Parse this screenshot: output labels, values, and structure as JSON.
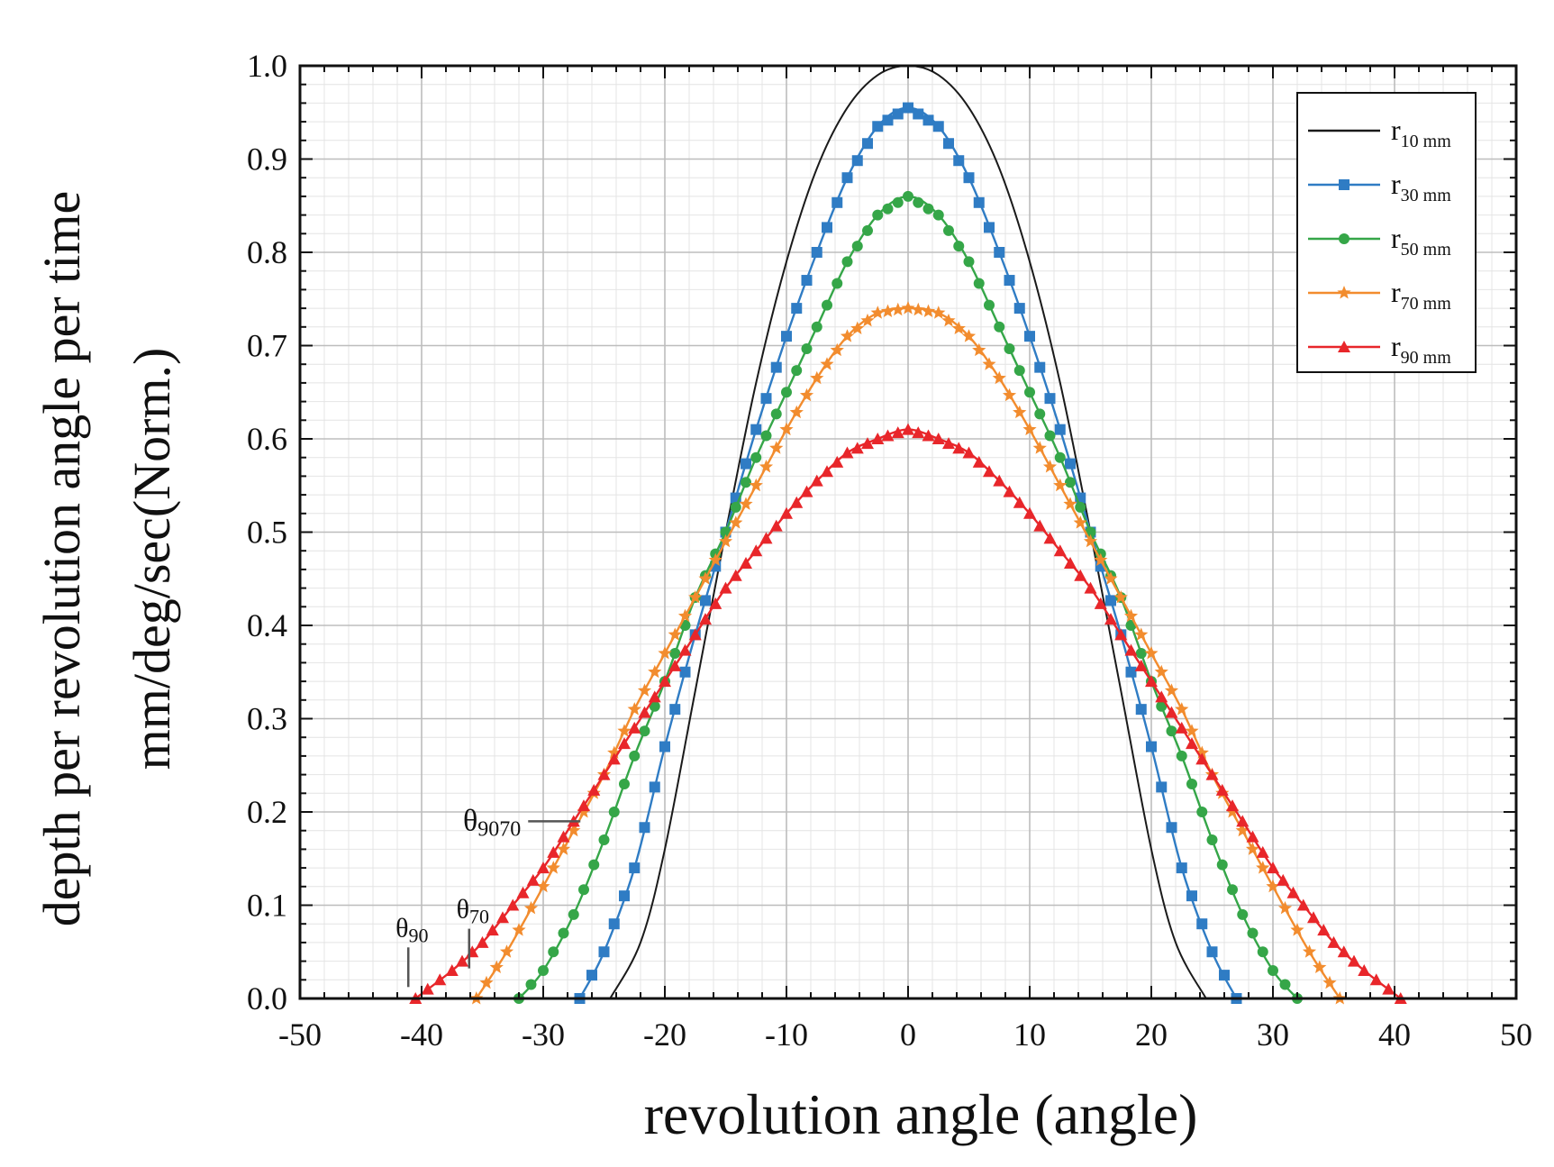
{
  "chart_data": {
    "type": "line",
    "title": "",
    "xlabel": "revolution angle (angle)",
    "ylabel_line1": "depth per revolution angle per time",
    "ylabel_line2": "mm/deg/sec(Norm.)",
    "xlim": [
      -50,
      50
    ],
    "ylim": [
      0,
      1.0
    ],
    "x_ticks": [
      -50,
      -40,
      -30,
      -20,
      -10,
      0,
      10,
      20,
      30,
      40,
      50
    ],
    "x_tick_labels": [
      "-50",
      "-40",
      "-30",
      "-20",
      "-10",
      "0",
      "10",
      "20",
      "30",
      "40",
      "50"
    ],
    "y_ticks": [
      0,
      0.1,
      0.2,
      0.3,
      0.4,
      0.5,
      0.6,
      0.7,
      0.8,
      0.9,
      1.0
    ],
    "y_tick_labels": [
      "0.0",
      "0.1",
      "0.2",
      "0.3",
      "0.4",
      "0.5",
      "0.6",
      "0.7",
      "0.8",
      "0.9",
      "1.0"
    ],
    "grid": true,
    "legend_position": "top-right",
    "series": [
      {
        "name": "r",
        "subscript": "10 mm",
        "color": "#1a1a1a",
        "marker": "none",
        "x": [
          -24.5,
          -22,
          -20,
          -17.5,
          -15,
          -12.5,
          -10,
          -7.5,
          -5,
          -2.5,
          0,
          2.5,
          5,
          7.5,
          10,
          12.5,
          15,
          17.5,
          20,
          22,
          24.5
        ],
        "values": [
          0.0,
          0.06,
          0.16,
          0.33,
          0.5,
          0.66,
          0.79,
          0.89,
          0.955,
          0.99,
          1.0,
          0.99,
          0.955,
          0.89,
          0.79,
          0.66,
          0.5,
          0.33,
          0.16,
          0.06,
          0.0
        ]
      },
      {
        "name": "r",
        "subscript": "30 mm",
        "color": "#2f7cc4",
        "marker": "square",
        "x": [
          -27,
          -25,
          -22.5,
          -20,
          -17.5,
          -15,
          -12.5,
          -10,
          -7.5,
          -5,
          -2.5,
          0,
          2.5,
          5,
          7.5,
          10,
          12.5,
          15,
          17.5,
          20,
          22.5,
          25,
          27
        ],
        "values": [
          0.0,
          0.05,
          0.14,
          0.27,
          0.39,
          0.5,
          0.61,
          0.71,
          0.8,
          0.88,
          0.935,
          0.955,
          0.935,
          0.88,
          0.8,
          0.71,
          0.61,
          0.5,
          0.39,
          0.27,
          0.14,
          0.05,
          0.0
        ]
      },
      {
        "name": "r",
        "subscript": "50 mm",
        "color": "#35a648",
        "marker": "circle",
        "x": [
          -32,
          -30,
          -27.5,
          -25,
          -22.5,
          -20,
          -17.5,
          -15,
          -12.5,
          -10,
          -7.5,
          -5,
          -2.5,
          0,
          2.5,
          5,
          7.5,
          10,
          12.5,
          15,
          17.5,
          20,
          22.5,
          25,
          27.5,
          30,
          32
        ],
        "values": [
          0.0,
          0.03,
          0.09,
          0.17,
          0.26,
          0.34,
          0.43,
          0.5,
          0.58,
          0.65,
          0.72,
          0.79,
          0.84,
          0.86,
          0.84,
          0.79,
          0.72,
          0.65,
          0.58,
          0.5,
          0.43,
          0.34,
          0.26,
          0.17,
          0.09,
          0.03,
          0.0
        ]
      },
      {
        "name": "r",
        "subscript": "70 mm",
        "color": "#f28c2e",
        "marker": "star",
        "x": [
          -35.5,
          -33,
          -30,
          -27.5,
          -25,
          -22.5,
          -20,
          -17.5,
          -15,
          -12.5,
          -10,
          -7.5,
          -5,
          -2.5,
          0,
          2.5,
          5,
          7.5,
          10,
          12.5,
          15,
          17.5,
          20,
          22.5,
          25,
          27.5,
          30,
          33,
          35.5
        ],
        "values": [
          0.0,
          0.05,
          0.12,
          0.18,
          0.24,
          0.31,
          0.37,
          0.43,
          0.49,
          0.55,
          0.61,
          0.665,
          0.71,
          0.735,
          0.74,
          0.735,
          0.71,
          0.665,
          0.61,
          0.55,
          0.49,
          0.43,
          0.37,
          0.31,
          0.24,
          0.18,
          0.12,
          0.05,
          0.0
        ]
      },
      {
        "name": "r",
        "subscript": "90 mm",
        "color": "#e8262a",
        "marker": "triangle",
        "x": [
          -40.5,
          -37.5,
          -35,
          -32.5,
          -30,
          -27.5,
          -25,
          -22.5,
          -20,
          -17.5,
          -15,
          -12.5,
          -10,
          -7.5,
          -5,
          -2.5,
          0,
          2.5,
          5,
          7.5,
          10,
          12.5,
          15,
          17.5,
          20,
          22.5,
          25,
          27.5,
          30,
          32.5,
          35,
          37.5,
          40.5
        ],
        "values": [
          0.0,
          0.03,
          0.06,
          0.1,
          0.14,
          0.19,
          0.24,
          0.29,
          0.34,
          0.39,
          0.44,
          0.48,
          0.52,
          0.555,
          0.585,
          0.6,
          0.61,
          0.6,
          0.585,
          0.555,
          0.52,
          0.48,
          0.44,
          0.39,
          0.34,
          0.29,
          0.24,
          0.19,
          0.14,
          0.1,
          0.06,
          0.03,
          0.0
        ]
      }
    ],
    "annotations": [
      {
        "symbol": "θ",
        "subscript": "9070",
        "x": -26.5,
        "y": 0.19
      },
      {
        "symbol": "θ",
        "subscript": "70",
        "x": -35.5,
        "y": 0.04
      },
      {
        "symbol": "θ",
        "subscript": "90",
        "x": -40.5,
        "y": 0.02
      }
    ]
  }
}
